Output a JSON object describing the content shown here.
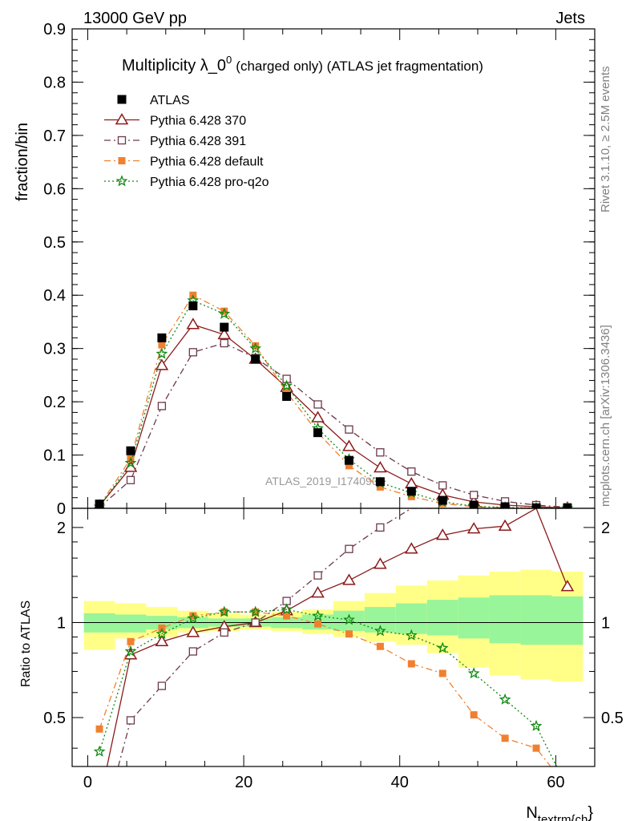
{
  "header": {
    "left": "13000 GeV pp",
    "right": "Jets"
  },
  "side_labels": {
    "rivet": "Rivet 3.1.10, ≥ 2.5M events",
    "mcplots": "mcplots.cern.ch [arXiv:1306.3436]"
  },
  "chart_data": {
    "type": "line",
    "title": "Multiplicity λ_0⁰ (charged only) (ATLAS jet fragmentation)",
    "title_main": "Multiplicity λ_0",
    "title_sup": "0",
    "title_rest": "(charged only) (ATLAS jet fragmentation)",
    "analysis_watermark": "ATLAS_2019_I1740909",
    "xlabel_main": "N",
    "xlabel_sub": "textrm{ch",
    "xlabel_close": "}",
    "ylabel": "fraction/bin",
    "ratio_ylabel": "Ratio to ATLAS",
    "xlim": [
      -2,
      65
    ],
    "ylim": [
      0,
      0.9
    ],
    "ratio_ylim": [
      0.35,
      2.3
    ],
    "x_ticks": [
      0,
      20,
      40,
      60
    ],
    "y_ticks": [
      "0",
      "0.1",
      "0.2",
      "0.3",
      "0.4",
      "0.5",
      "0.6",
      "0.7",
      "0.8",
      "0.9"
    ],
    "ratio_ticks": [
      "0.5",
      "1",
      "2"
    ],
    "x": [
      1.5,
      5.5,
      9.5,
      13.5,
      17.5,
      21.5,
      25.5,
      29.5,
      33.5,
      37.5,
      41.5,
      45.5,
      49.5,
      53.5,
      57.5,
      61.5
    ],
    "data": {
      "name": "ATLAS",
      "values": [
        0.008,
        0.108,
        0.32,
        0.38,
        0.34,
        0.28,
        0.21,
        0.142,
        0.09,
        0.05,
        0.032,
        0.015,
        0.006,
        0.003,
        0.001,
        0.0005
      ]
    },
    "series": [
      {
        "name": "Pythia 6.428 370",
        "color": "#8b1a1a",
        "marker": "triangle-open",
        "dash": "",
        "values": [
          0.0045,
          0.077,
          0.268,
          0.345,
          0.326,
          0.28,
          0.227,
          0.17,
          0.116,
          0.076,
          0.046,
          0.025,
          0.012,
          0.006,
          0.003,
          0.0007
        ],
        "ratio": [
          0.27,
          0.79,
          0.87,
          0.93,
          0.97,
          1.0,
          1.09,
          1.24,
          1.36,
          1.53,
          1.71,
          1.89,
          1.98,
          2.02,
          2.3,
          1.3
        ]
      },
      {
        "name": "Pythia 6.428 391",
        "color": "#6b3a4a",
        "marker": "square-open",
        "dash": "8,4,2,4",
        "values": [
          0.002,
          0.053,
          0.192,
          0.293,
          0.31,
          0.282,
          0.243,
          0.195,
          0.148,
          0.105,
          0.069,
          0.043,
          0.025,
          0.013,
          0.006,
          0.002
        ],
        "ratio": [
          0.21,
          0.49,
          0.63,
          0.81,
          0.93,
          1.0,
          1.17,
          1.41,
          1.71,
          2.0,
          2.3,
          2.3,
          2.3,
          2.3,
          2.3,
          2.3
        ]
      },
      {
        "name": "Pythia 6.428 default",
        "color": "#f08030",
        "marker": "square-filled",
        "dash": "8,4,2,4",
        "values": [
          0.005,
          0.093,
          0.307,
          0.4,
          0.37,
          0.305,
          0.218,
          0.142,
          0.08,
          0.04,
          0.022,
          0.009,
          0.003,
          0.0012,
          0.0004,
          0.0001
        ],
        "ratio": [
          0.46,
          0.87,
          0.96,
          1.05,
          1.08,
          1.08,
          1.05,
          0.99,
          0.92,
          0.84,
          0.74,
          0.69,
          0.51,
          0.43,
          0.4,
          0.3
        ]
      },
      {
        "name": "Pythia 6.428 pro-q2o",
        "color": "#108a10",
        "marker": "star",
        "dash": "2,3",
        "values": [
          0.003,
          0.085,
          0.29,
          0.39,
          0.365,
          0.3,
          0.23,
          0.15,
          0.092,
          0.048,
          0.029,
          0.012,
          0.004,
          0.0017,
          0.0005,
          0.0001
        ],
        "ratio": [
          0.39,
          0.81,
          0.92,
          1.03,
          1.08,
          1.08,
          1.1,
          1.05,
          1.02,
          0.94,
          0.91,
          0.83,
          0.69,
          0.57,
          0.47,
          0.3
        ]
      }
    ],
    "bands_outer": [
      [
        0.82,
        1.17
      ],
      [
        0.89,
        1.15
      ],
      [
        0.9,
        1.12
      ],
      [
        0.93,
        1.09
      ],
      [
        0.94,
        1.07
      ],
      [
        0.95,
        1.06
      ],
      [
        0.94,
        1.08
      ],
      [
        0.92,
        1.1
      ],
      [
        0.9,
        1.17
      ],
      [
        0.87,
        1.24
      ],
      [
        0.85,
        1.31
      ],
      [
        0.8,
        1.36
      ],
      [
        0.72,
        1.41
      ],
      [
        0.68,
        1.45
      ],
      [
        0.66,
        1.47
      ],
      [
        0.65,
        1.45
      ]
    ],
    "bands_inner": [
      [
        0.93,
        1.07
      ],
      [
        0.93,
        1.06
      ],
      [
        0.95,
        1.05
      ],
      [
        0.96,
        1.04
      ],
      [
        0.97,
        1.03
      ],
      [
        0.97,
        1.03
      ],
      [
        0.96,
        1.04
      ],
      [
        0.95,
        1.06
      ],
      [
        0.94,
        1.09
      ],
      [
        0.93,
        1.12
      ],
      [
        0.92,
        1.15
      ],
      [
        0.91,
        1.18
      ],
      [
        0.89,
        1.2
      ],
      [
        0.86,
        1.22
      ],
      [
        0.85,
        1.22
      ],
      [
        0.85,
        1.21
      ]
    ]
  }
}
